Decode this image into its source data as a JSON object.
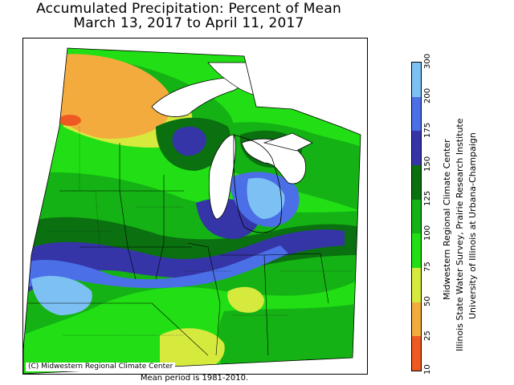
{
  "title": {
    "line1": "Accumulated Precipitation: Percent of Mean",
    "line2": "March 13, 2017 to April 11, 2017"
  },
  "copyright": "(C) Midwestern Regional Climate Center",
  "mean_period": "Mean period is 1981-2010.",
  "credits": [
    "Midwestern Regional Climate Center",
    "Illinois State Water Survey, Prairie Research Institute",
    "University of Illinois at Urbana-Champaign"
  ],
  "legend": {
    "ticks": [
      "10",
      "25",
      "50",
      "75",
      "100",
      "125",
      "150",
      "175",
      "200",
      "300"
    ],
    "classes": [
      {
        "range": "10-25",
        "color": "#ee5a22"
      },
      {
        "range": "25-50",
        "color": "#f3ab3e"
      },
      {
        "range": "50-75",
        "color": "#d6ea3e"
      },
      {
        "range": "75-100",
        "color": "#21df14"
      },
      {
        "range": "100-125",
        "color": "#14b214"
      },
      {
        "range": "125-150",
        "color": "#0a7010"
      },
      {
        "range": "150-175",
        "color": "#3535a8"
      },
      {
        "range": "175-200",
        "color": "#4a6fe6"
      },
      {
        "range": "200-300",
        "color": "#7dc1f4"
      }
    ]
  },
  "colors": {
    "background": "#ffffff",
    "border": "#000000",
    "water": "#ffffff"
  }
}
